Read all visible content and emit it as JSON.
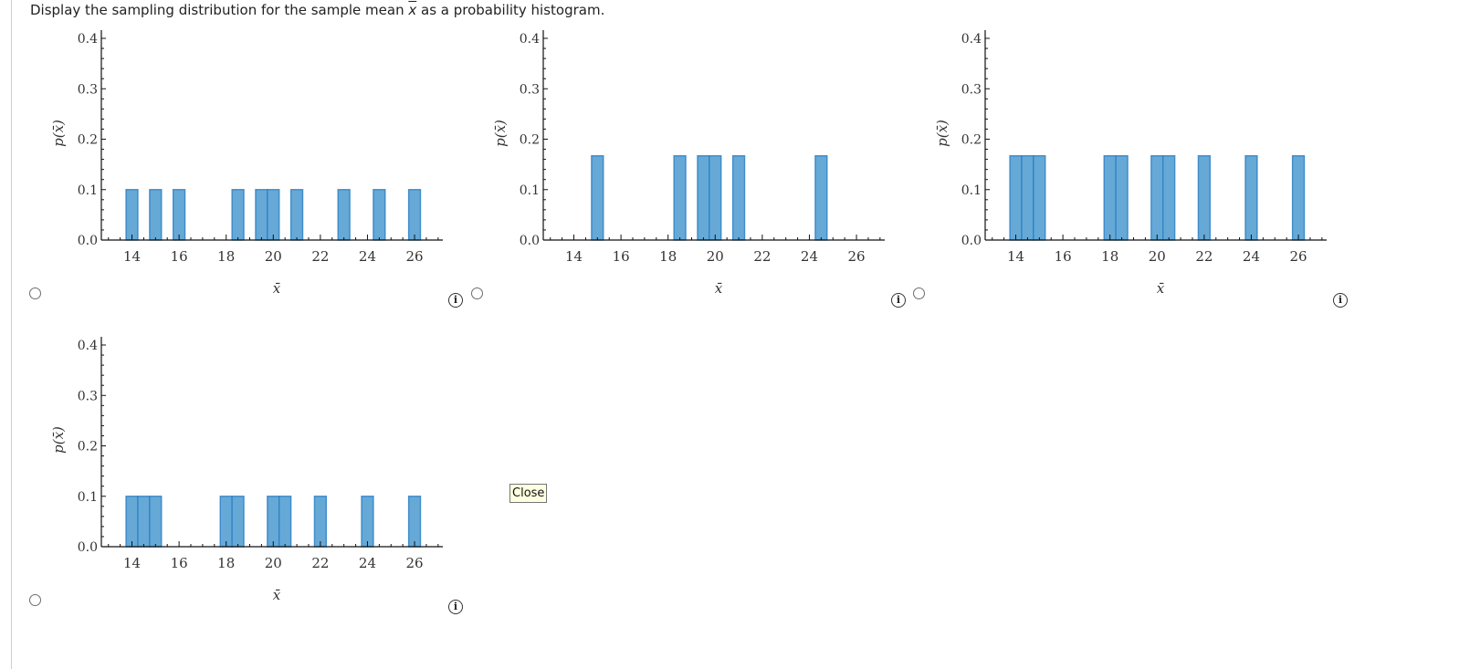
{
  "prompt": {
    "before": "Display the sampling distribution for the sample mean ",
    "var": "x",
    "after": " as a probability histogram."
  },
  "colors": {
    "bar_fill": "#66a9d6",
    "bar_stroke": "#2b80c5",
    "axis": "#111111",
    "text": "#333333"
  },
  "close_tooltip": "Close",
  "info_glyph": "i",
  "chart_data": [
    {
      "id": "option-1",
      "type": "bar",
      "xlabel": "x̄",
      "ylabel": "p(x̄)",
      "xticks": [
        14,
        16,
        18,
        20,
        22,
        24,
        26
      ],
      "yticks": [
        "0.0",
        "0.1",
        "0.2",
        "0.3",
        "0.4"
      ],
      "xlim": [
        12.7,
        27.2
      ],
      "ylim": [
        0,
        0.4
      ],
      "bar_width": 0.5,
      "x": [
        14,
        15,
        16,
        18.5,
        19.5,
        20,
        21,
        23,
        24.5,
        26
      ],
      "values": [
        0.1,
        0.1,
        0.1,
        0.1,
        0.1,
        0.1,
        0.1,
        0.1,
        0.1,
        0.1
      ]
    },
    {
      "id": "option-2",
      "type": "bar",
      "xlabel": "x̄",
      "ylabel": "p(x̄)",
      "xticks": [
        14,
        16,
        18,
        20,
        22,
        24,
        26
      ],
      "yticks": [
        "0.0",
        "0.1",
        "0.2",
        "0.3",
        "0.4"
      ],
      "xlim": [
        12.7,
        27.2
      ],
      "ylim": [
        0,
        0.4
      ],
      "bar_width": 0.5,
      "x": [
        15,
        18.5,
        19.5,
        20,
        21,
        24.5
      ],
      "values": [
        0.167,
        0.167,
        0.167,
        0.167,
        0.167,
        0.167
      ]
    },
    {
      "id": "option-3",
      "type": "bar",
      "xlabel": "x̄",
      "ylabel": "p(x̄)",
      "xticks": [
        14,
        16,
        18,
        20,
        22,
        24,
        26
      ],
      "yticks": [
        "0.0",
        "0.1",
        "0.2",
        "0.3",
        "0.4"
      ],
      "xlim": [
        12.7,
        27.2
      ],
      "ylim": [
        0,
        0.4
      ],
      "bar_width": 0.5,
      "x": [
        14,
        14.5,
        15,
        18,
        18.5,
        20,
        20.5,
        22,
        24,
        26
      ],
      "values": [
        0.167,
        0.167,
        0.167,
        0.167,
        0.167,
        0.167,
        0.167,
        0.167,
        0.167,
        0.167
      ]
    },
    {
      "id": "option-4",
      "type": "bar",
      "xlabel": "x̄",
      "ylabel": "p(x̄)",
      "xticks": [
        14,
        16,
        18,
        20,
        22,
        24,
        26
      ],
      "yticks": [
        "0.0",
        "0.1",
        "0.2",
        "0.3",
        "0.4"
      ],
      "xlim": [
        12.7,
        27.2
      ],
      "ylim": [
        0,
        0.4
      ],
      "bar_width": 0.5,
      "x": [
        14,
        14.5,
        15,
        18,
        18.5,
        20,
        20.5,
        22,
        24,
        26
      ],
      "values": [
        0.1,
        0.1,
        0.1,
        0.1,
        0.1,
        0.1,
        0.1,
        0.1,
        0.1,
        0.1
      ]
    }
  ]
}
